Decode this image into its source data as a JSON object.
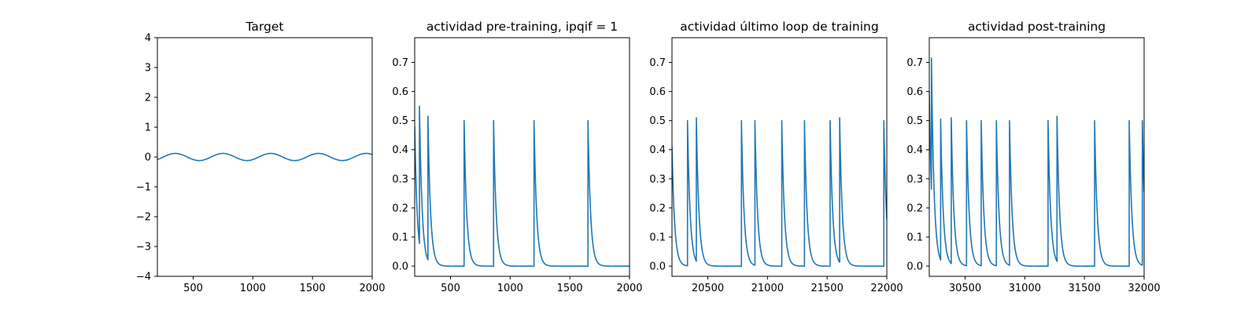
{
  "figure": {
    "background": "#ffffff"
  },
  "chart_data": [
    {
      "type": "line",
      "title": "Target",
      "xlabel": "",
      "ylabel": "",
      "xlim": [
        200,
        2000
      ],
      "ylim": [
        -4,
        4
      ],
      "xticks": [
        500,
        1000,
        1500,
        2000
      ],
      "yticks": [
        -4,
        -3,
        -2,
        -1,
        0,
        1,
        2,
        3,
        4
      ],
      "grid": false,
      "series": [
        {
          "color": "#1f77b4",
          "shape": "sine",
          "amplitude": 0.12,
          "period": 400,
          "phase_x": 350,
          "x_start": 200,
          "x_end": 2000
        }
      ]
    },
    {
      "type": "line",
      "title": "actividad pre-training, ipqif = 1",
      "xlabel": "",
      "ylabel": "",
      "xlim": [
        200,
        2000
      ],
      "ylim": [
        -0.035,
        0.785
      ],
      "xticks": [
        500,
        1000,
        1500,
        2000
      ],
      "yticks": [
        0.0,
        0.1,
        0.2,
        0.3,
        0.4,
        0.5,
        0.6,
        0.7
      ],
      "grid": false,
      "series": [
        {
          "color": "#1f77b4",
          "shape": "spikes",
          "x_start": 200,
          "x_end": 2000,
          "start_value": 0.48,
          "baseline": 0.0,
          "decay_tau": 22,
          "spikes": [
            {
              "x": 240,
              "peak": 0.55
            },
            {
              "x": 311,
              "peak": 0.515
            },
            {
              "x": 614,
              "peak": 0.5
            },
            {
              "x": 861,
              "peak": 0.5
            },
            {
              "x": 1200,
              "peak": 0.5
            },
            {
              "x": 1652,
              "peak": 0.5
            }
          ]
        }
      ]
    },
    {
      "type": "line",
      "title": "actividad último loop de training",
      "xlabel": "",
      "ylabel": "",
      "xlim": [
        20200,
        22000
      ],
      "ylim": [
        -0.035,
        0.785
      ],
      "xticks": [
        20500,
        21000,
        21500,
        22000
      ],
      "yticks": [
        0.0,
        0.1,
        0.2,
        0.3,
        0.4,
        0.5,
        0.6,
        0.7
      ],
      "grid": false,
      "series": [
        {
          "color": "#1f77b4",
          "shape": "spikes",
          "x_start": 20200,
          "x_end": 22000,
          "start_value": 0.41,
          "baseline": 0.0,
          "decay_tau": 22,
          "spikes": [
            {
              "x": 20330,
              "peak": 0.5
            },
            {
              "x": 20404,
              "peak": 0.51
            },
            {
              "x": 20782,
              "peak": 0.5
            },
            {
              "x": 20895,
              "peak": 0.5
            },
            {
              "x": 21120,
              "peak": 0.5
            },
            {
              "x": 21310,
              "peak": 0.5
            },
            {
              "x": 21525,
              "peak": 0.5
            },
            {
              "x": 21605,
              "peak": 0.51
            },
            {
              "x": 21975,
              "peak": 0.5
            }
          ]
        }
      ]
    },
    {
      "type": "line",
      "title": "actividad post-training",
      "xlabel": "",
      "ylabel": "",
      "xlim": [
        30200,
        32000
      ],
      "ylim": [
        -0.035,
        0.785
      ],
      "xticks": [
        30500,
        31000,
        31500,
        32000
      ],
      "yticks": [
        0.0,
        0.1,
        0.2,
        0.3,
        0.4,
        0.5,
        0.6,
        0.7
      ],
      "grid": false,
      "series": [
        {
          "color": "#1f77b4",
          "shape": "spikes",
          "x_start": 30200,
          "x_end": 32000,
          "start_value": 0.6,
          "baseline": 0.0,
          "decay_tau": 22,
          "spikes": [
            {
              "x": 30218,
              "peak": 0.715
            },
            {
              "x": 30295,
              "peak": 0.505
            },
            {
              "x": 30384,
              "peak": 0.51
            },
            {
              "x": 30512,
              "peak": 0.5
            },
            {
              "x": 30635,
              "peak": 0.5
            },
            {
              "x": 30762,
              "peak": 0.5
            },
            {
              "x": 30872,
              "peak": 0.5
            },
            {
              "x": 31195,
              "peak": 0.5
            },
            {
              "x": 31270,
              "peak": 0.515
            },
            {
              "x": 31585,
              "peak": 0.5
            },
            {
              "x": 31875,
              "peak": 0.5
            },
            {
              "x": 31985,
              "peak": 0.5
            }
          ]
        }
      ]
    }
  ]
}
